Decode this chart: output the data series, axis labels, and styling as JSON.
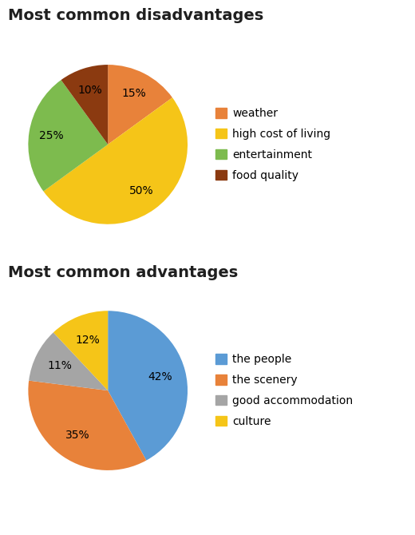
{
  "dis_title": "Most common disadvantages",
  "dis_labels": [
    "weather",
    "high cost of living",
    "entertainment",
    "food quality"
  ],
  "dis_values": [
    15,
    50,
    25,
    10
  ],
  "dis_colors": [
    "#e8823a",
    "#f5c518",
    "#7dbb4e",
    "#8b3a10"
  ],
  "adv_title": "Most common advantages",
  "adv_labels": [
    "the people",
    "the scenery",
    "good accommodation",
    "culture"
  ],
  "adv_values": [
    42,
    35,
    11,
    12
  ],
  "adv_colors": [
    "#5b9bd5",
    "#e8823a",
    "#a5a5a5",
    "#f5c518"
  ],
  "background_color": "#ffffff",
  "title_fontsize": 14,
  "legend_fontsize": 10,
  "autopct_fontsize": 10
}
